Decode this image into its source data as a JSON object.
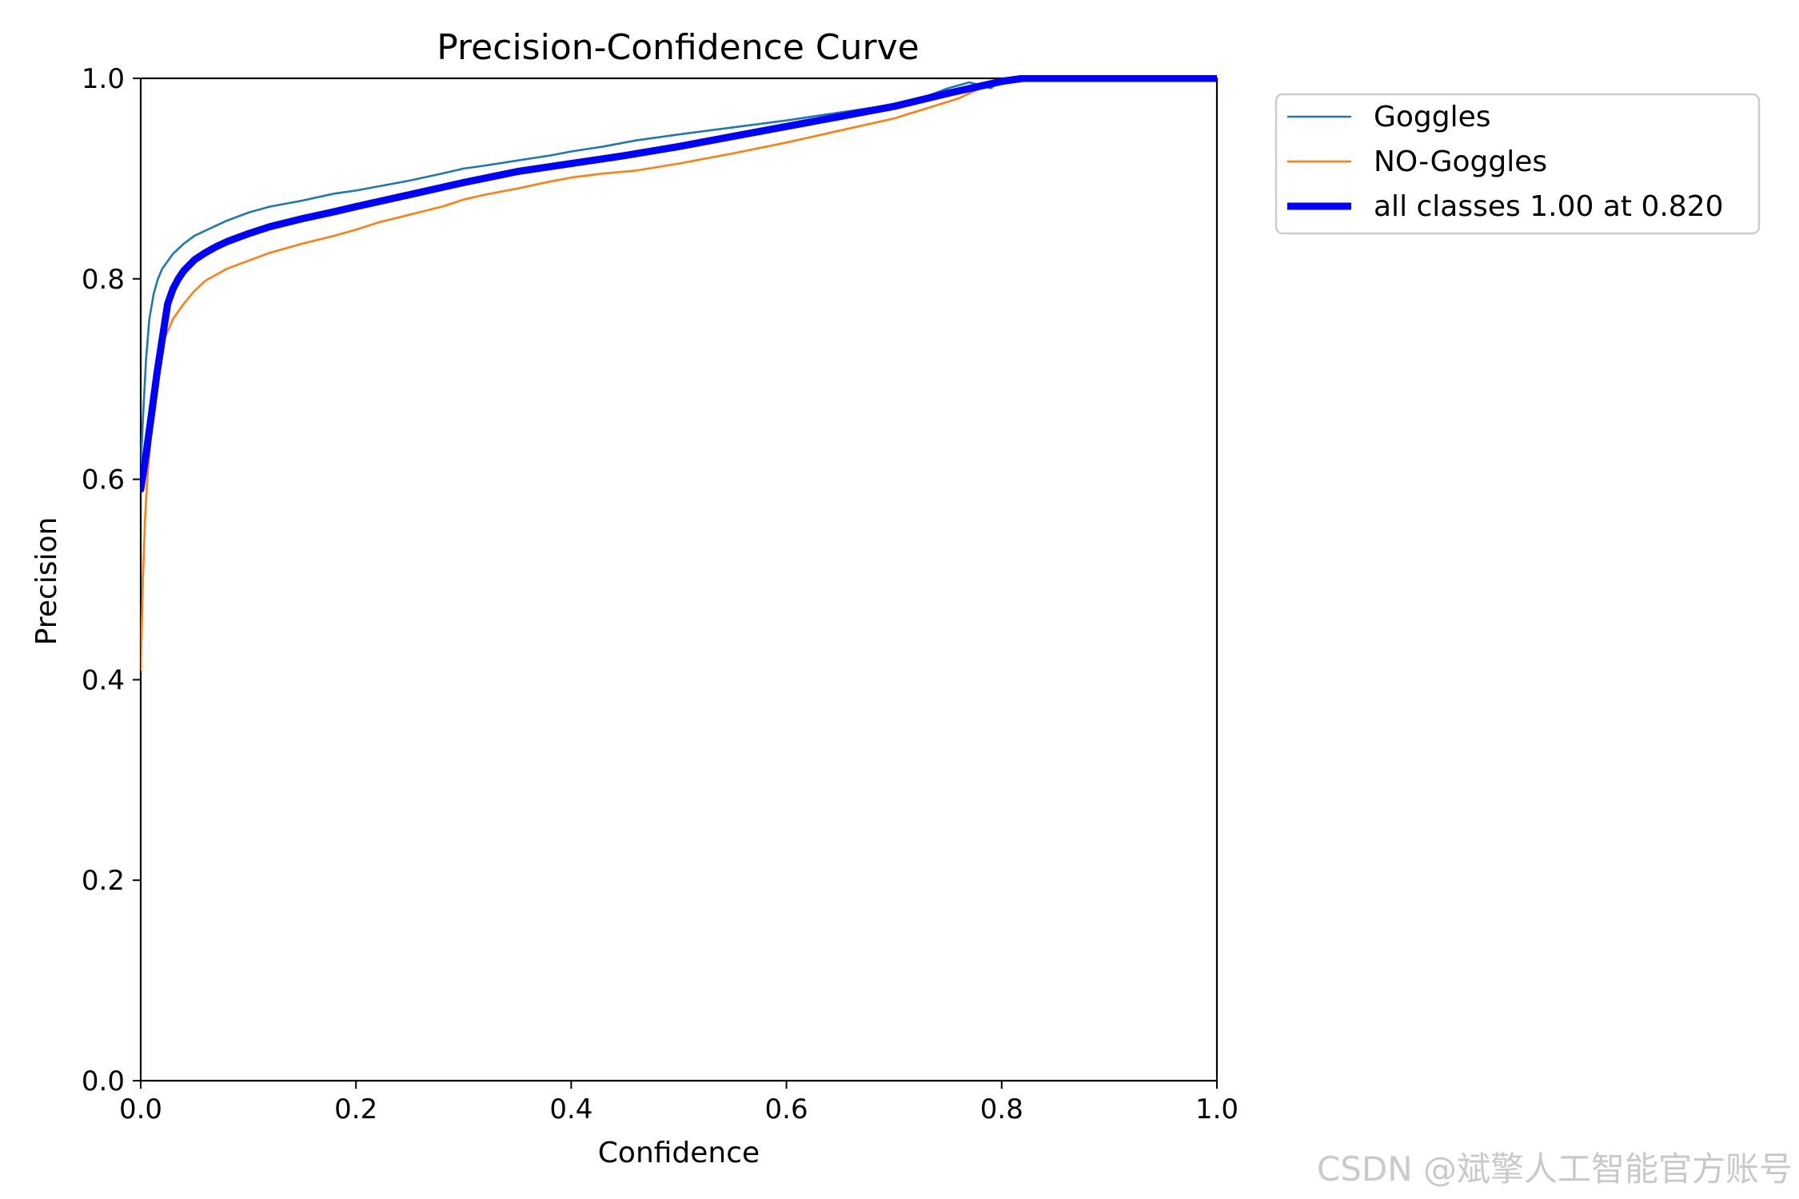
{
  "watermark": "CSDN @斌擎人工智能官方账号",
  "chart_data": {
    "type": "line",
    "title": "Precision-Confidence Curve",
    "xlabel": "Confidence",
    "ylabel": "Precision",
    "xlim": [
      0.0,
      1.0
    ],
    "ylim": [
      0.0,
      1.0
    ],
    "xticks": [
      "0.0",
      "0.2",
      "0.4",
      "0.6",
      "0.8",
      "1.0"
    ],
    "yticks": [
      "0.0",
      "0.2",
      "0.4",
      "0.6",
      "0.8",
      "1.0"
    ],
    "grid": false,
    "legend_position": "outside-top-right",
    "series": [
      {
        "name": "Goggles",
        "color": "#1f77b4",
        "line_width": "thin",
        "x": [
          0.0,
          0.002,
          0.005,
          0.008,
          0.012,
          0.016,
          0.02,
          0.03,
          0.04,
          0.05,
          0.06,
          0.08,
          0.1,
          0.12,
          0.15,
          0.18,
          0.2,
          0.22,
          0.25,
          0.28,
          0.3,
          0.32,
          0.35,
          0.38,
          0.4,
          0.43,
          0.46,
          0.5,
          0.55,
          0.6,
          0.65,
          0.7,
          0.73,
          0.75,
          0.77,
          0.79,
          0.8,
          0.82,
          0.85,
          0.9,
          0.95,
          1.0
        ],
        "y": [
          0.61,
          0.66,
          0.72,
          0.76,
          0.785,
          0.8,
          0.81,
          0.825,
          0.835,
          0.843,
          0.848,
          0.858,
          0.866,
          0.872,
          0.878,
          0.885,
          0.888,
          0.892,
          0.898,
          0.905,
          0.91,
          0.913,
          0.918,
          0.923,
          0.927,
          0.932,
          0.938,
          0.944,
          0.951,
          0.958,
          0.966,
          0.974,
          0.982,
          0.99,
          0.996,
          0.99,
          1.0,
          1.0,
          1.0,
          1.0,
          1.0,
          1.0
        ]
      },
      {
        "name": "NO-Goggles",
        "color": "#ff7f0e",
        "line_width": "thin",
        "x": [
          0.0,
          0.002,
          0.004,
          0.006,
          0.01,
          0.015,
          0.02,
          0.03,
          0.04,
          0.05,
          0.06,
          0.08,
          0.1,
          0.12,
          0.15,
          0.18,
          0.2,
          0.22,
          0.25,
          0.28,
          0.3,
          0.32,
          0.35,
          0.38,
          0.4,
          0.43,
          0.46,
          0.5,
          0.55,
          0.6,
          0.65,
          0.7,
          0.73,
          0.76,
          0.78,
          0.8,
          0.82,
          0.85,
          0.9,
          0.95,
          1.0
        ],
        "y": [
          0.41,
          0.5,
          0.56,
          0.6,
          0.65,
          0.7,
          0.735,
          0.76,
          0.775,
          0.788,
          0.798,
          0.81,
          0.818,
          0.826,
          0.835,
          0.843,
          0.849,
          0.856,
          0.864,
          0.872,
          0.879,
          0.884,
          0.89,
          0.897,
          0.901,
          0.905,
          0.908,
          0.915,
          0.925,
          0.936,
          0.948,
          0.96,
          0.97,
          0.98,
          0.99,
          0.997,
          1.0,
          1.0,
          1.0,
          1.0,
          1.0
        ]
      },
      {
        "name": "all classes 1.00 at 0.820",
        "color": "#0000ff",
        "line_width": "thick",
        "x": [
          0.0,
          0.005,
          0.01,
          0.015,
          0.02,
          0.025,
          0.03,
          0.035,
          0.04,
          0.05,
          0.06,
          0.07,
          0.08,
          0.1,
          0.12,
          0.15,
          0.18,
          0.2,
          0.25,
          0.3,
          0.35,
          0.4,
          0.45,
          0.5,
          0.55,
          0.6,
          0.65,
          0.7,
          0.75,
          0.8,
          0.82,
          0.85,
          0.9,
          0.95,
          1.0
        ],
        "y": [
          0.59,
          0.625,
          0.665,
          0.705,
          0.74,
          0.775,
          0.79,
          0.8,
          0.808,
          0.819,
          0.826,
          0.832,
          0.837,
          0.845,
          0.852,
          0.86,
          0.867,
          0.872,
          0.884,
          0.896,
          0.907,
          0.915,
          0.923,
          0.932,
          0.942,
          0.952,
          0.962,
          0.972,
          0.985,
          0.997,
          1.0,
          1.0,
          1.0,
          1.0,
          1.0
        ]
      }
    ]
  }
}
